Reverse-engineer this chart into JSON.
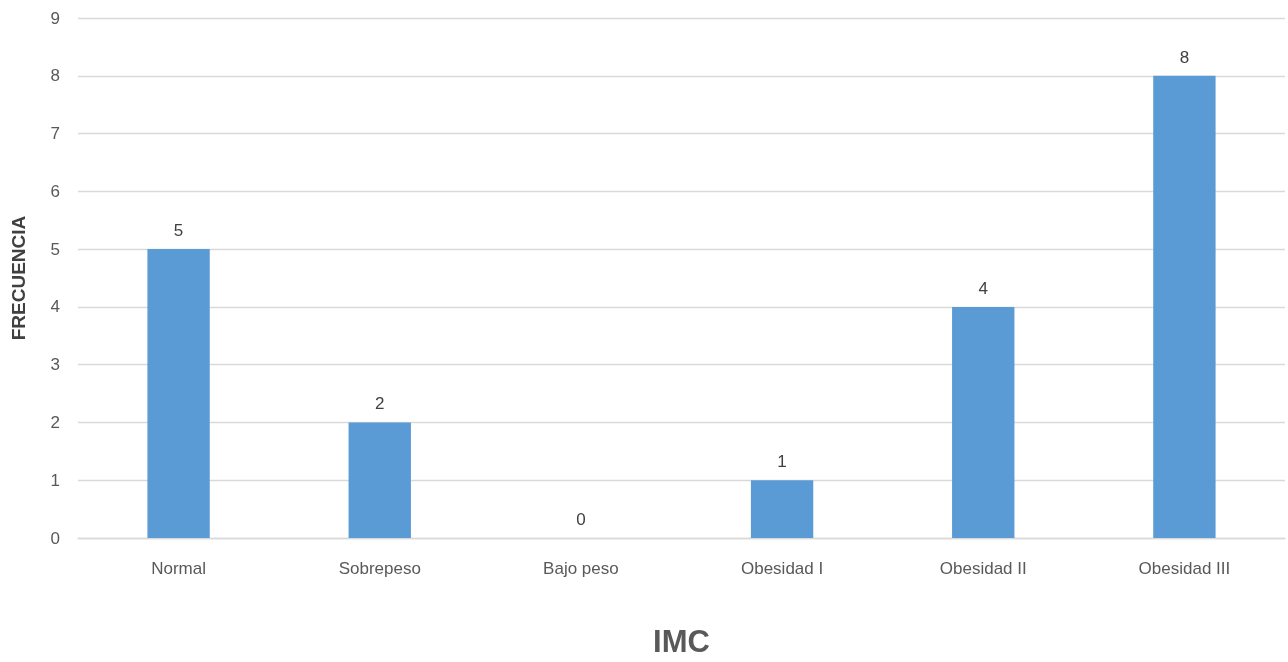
{
  "chart_data": {
    "type": "bar",
    "xlabel": "IMC",
    "ylabel": "FRECUENCIA",
    "categories": [
      "Normal",
      "Sobrepeso",
      "Bajo peso",
      "Obesidad I",
      "Obesidad II",
      "Obesidad III"
    ],
    "values": [
      5,
      2,
      0,
      1,
      4,
      8
    ],
    "color": "#5b9bd5",
    "ylim": [
      0,
      9
    ],
    "yticks": [
      0,
      1,
      2,
      3,
      4,
      5,
      6,
      7,
      8,
      9
    ],
    "grid": "y",
    "data_labels": true
  }
}
